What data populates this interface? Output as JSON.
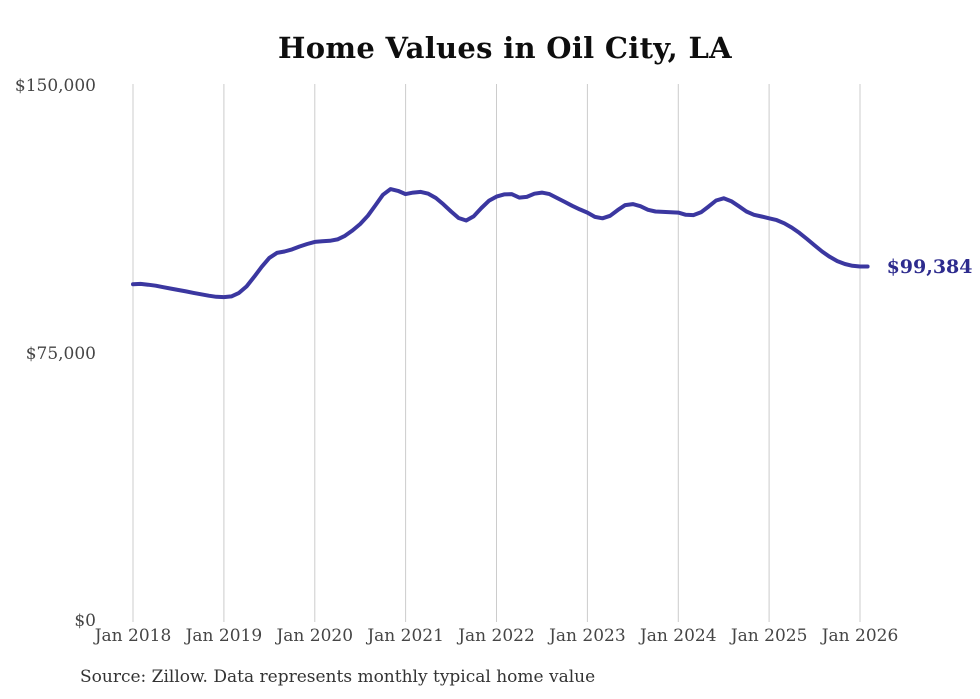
{
  "chart_data": {
    "type": "line",
    "title": "Home Values in Oil City, LA",
    "xlabel": "",
    "ylabel": "",
    "ylim": [
      0,
      150000
    ],
    "grid": "vertical-only",
    "legend": "none",
    "y_ticks": [
      {
        "value": 0,
        "label": "$0"
      },
      {
        "value": 75000,
        "label": "$75,000"
      },
      {
        "value": 150000,
        "label": "$150,000"
      }
    ],
    "x_tick_labels": [
      "Jan 2018",
      "Jan 2019",
      "Jan 2020",
      "Jan 2021",
      "Jan 2022",
      "Jan 2023",
      "Jan 2024",
      "Jan 2025",
      "Jan 2026"
    ],
    "x": [
      "2018-01",
      "2018-02",
      "2018-03",
      "2018-04",
      "2018-05",
      "2018-06",
      "2018-07",
      "2018-08",
      "2018-09",
      "2018-10",
      "2018-11",
      "2018-12",
      "2019-01",
      "2019-02",
      "2019-03",
      "2019-04",
      "2019-05",
      "2019-06",
      "2019-07",
      "2019-08",
      "2019-09",
      "2019-10",
      "2019-11",
      "2019-12",
      "2020-01",
      "2020-02",
      "2020-03",
      "2020-04",
      "2020-05",
      "2020-06",
      "2020-07",
      "2020-08",
      "2020-09",
      "2020-10",
      "2020-11",
      "2020-12",
      "2021-01",
      "2021-02",
      "2021-03",
      "2021-04",
      "2021-05",
      "2021-06",
      "2021-07",
      "2021-08",
      "2021-09",
      "2021-10",
      "2021-11",
      "2021-12",
      "2022-01",
      "2022-02",
      "2022-03",
      "2022-04",
      "2022-05",
      "2022-06",
      "2022-07",
      "2022-08",
      "2022-09",
      "2022-10",
      "2022-11",
      "2022-12",
      "2023-01",
      "2023-02",
      "2023-03",
      "2023-04",
      "2023-05",
      "2023-06",
      "2023-07",
      "2023-08",
      "2023-09",
      "2023-10",
      "2023-11",
      "2023-12",
      "2024-01",
      "2024-02",
      "2024-03",
      "2024-04",
      "2024-05",
      "2024-06",
      "2024-07",
      "2024-08",
      "2024-09",
      "2024-10",
      "2024-11",
      "2024-12",
      "2025-01",
      "2025-02",
      "2025-03",
      "2025-04",
      "2025-05",
      "2025-06",
      "2025-07",
      "2025-08",
      "2025-09",
      "2025-10",
      "2025-11",
      "2025-12",
      "2026-01",
      "2026-02"
    ],
    "values": [
      94400,
      94500,
      94300,
      94000,
      93600,
      93200,
      92800,
      92400,
      92000,
      91600,
      91200,
      90900,
      90800,
      91000,
      92000,
      93800,
      96500,
      99300,
      101800,
      103200,
      103600,
      104200,
      105000,
      105700,
      106300,
      106500,
      106600,
      107000,
      108000,
      109500,
      111300,
      113600,
      116500,
      119500,
      121100,
      120600,
      119700,
      120100,
      120300,
      119800,
      118600,
      116800,
      114800,
      113000,
      112300,
      113500,
      115800,
      117800,
      119000,
      119600,
      119700,
      118700,
      118900,
      119800,
      120100,
      119700,
      118600,
      117500,
      116400,
      115400,
      114500,
      113300,
      112900,
      113600,
      115200,
      116600,
      116900,
      116300,
      115300,
      114800,
      114700,
      114600,
      114500,
      113900,
      113800,
      114600,
      116200,
      117900,
      118500,
      117700,
      116300,
      114800,
      113900,
      113400,
      112900,
      112400,
      111500,
      110300,
      108800,
      107100,
      105300,
      103600,
      102100,
      100900,
      100100,
      99600,
      99400,
      99384
    ],
    "annotation": {
      "text": "$99,384"
    },
    "source": "Source: Zillow. Data represents monthly typical home value",
    "line_color": "#3b37a0",
    "annotation_color": "#2e2c8e",
    "grid_color": "#cccccc"
  }
}
